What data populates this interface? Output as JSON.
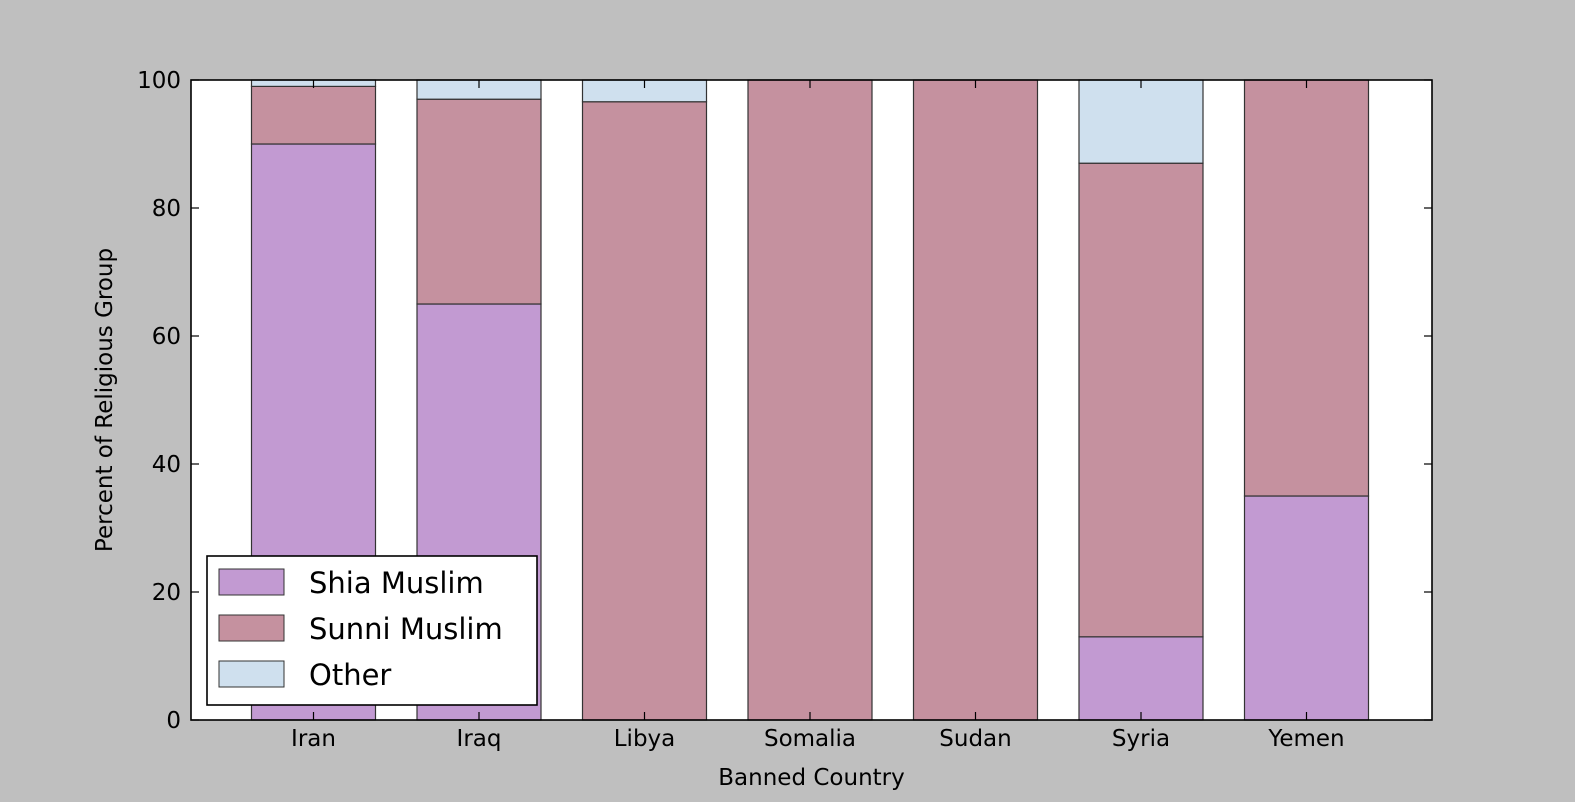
{
  "chart_data": {
    "type": "bar",
    "stacked": true,
    "categories": [
      "Iran",
      "Iraq",
      "Libya",
      "Somalia",
      "Sudan",
      "Syria",
      "Yemen"
    ],
    "series": [
      {
        "name": "Shia Muslim",
        "color": "#c29ad2",
        "values": [
          90,
          65,
          0,
          0,
          0,
          13,
          35
        ]
      },
      {
        "name": "Sunni Muslim",
        "color": "#c5919f",
        "values": [
          9,
          32,
          96.6,
          100,
          100,
          74,
          65
        ]
      },
      {
        "name": "Other",
        "color": "#cfe0ee",
        "values": [
          1,
          3,
          3.4,
          0,
          0,
          13,
          0
        ]
      }
    ],
    "xlabel": "Banned Country",
    "ylabel": "Percent of Religious Group",
    "ylim": [
      0,
      100
    ],
    "yticks": [
      0,
      20,
      40,
      60,
      80,
      100
    ],
    "grid": false,
    "legend_position": "bottom-left",
    "background": "#bfbfbf",
    "plot_background": "#ffffff"
  }
}
